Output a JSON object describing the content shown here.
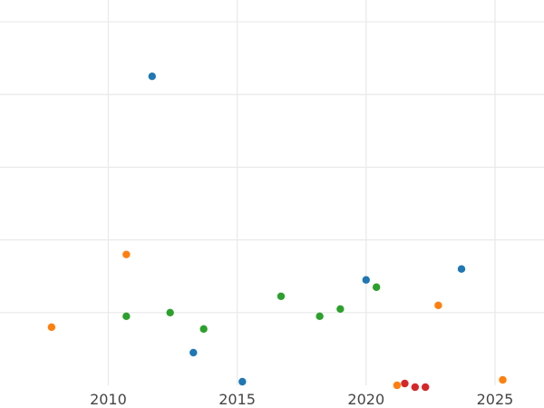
{
  "chart_data": {
    "type": "scatter",
    "title": "",
    "xlabel": "",
    "ylabel": "",
    "xlim": [
      2005.8,
      2026.9
    ],
    "ylim": [
      0,
      10.6
    ],
    "xticks": [
      2010,
      2015,
      2020,
      2025
    ],
    "xtick_labels": [
      "2010",
      "2015",
      "2020",
      "2025"
    ],
    "ygrid": [
      2,
      4,
      6,
      8,
      10
    ],
    "grid": true,
    "legend": "none",
    "series": [
      {
        "color": "#1f77b4",
        "points": [
          {
            "x": 2011.7,
            "y": 8.5
          },
          {
            "x": 2013.3,
            "y": 0.9
          },
          {
            "x": 2015.2,
            "y": 0.1
          },
          {
            "x": 2020.0,
            "y": 2.9
          },
          {
            "x": 2023.7,
            "y": 3.2
          }
        ]
      },
      {
        "color": "#ff7f0e",
        "points": [
          {
            "x": 2007.8,
            "y": 1.6
          },
          {
            "x": 2010.7,
            "y": 3.6
          },
          {
            "x": 2021.2,
            "y": 0.0
          },
          {
            "x": 2022.8,
            "y": 2.2
          },
          {
            "x": 2025.3,
            "y": 0.15
          }
        ]
      },
      {
        "color": "#2ca02c",
        "points": [
          {
            "x": 2010.7,
            "y": 1.9
          },
          {
            "x": 2012.4,
            "y": 2.0
          },
          {
            "x": 2013.7,
            "y": 1.55
          },
          {
            "x": 2016.7,
            "y": 2.45
          },
          {
            "x": 2018.2,
            "y": 1.9
          },
          {
            "x": 2019.0,
            "y": 2.1
          },
          {
            "x": 2020.4,
            "y": 2.7
          }
        ]
      },
      {
        "color": "#d62728",
        "points": [
          {
            "x": 2021.5,
            "y": 0.05
          },
          {
            "x": 2021.9,
            "y": -0.05
          },
          {
            "x": 2022.3,
            "y": -0.05
          }
        ]
      }
    ]
  }
}
